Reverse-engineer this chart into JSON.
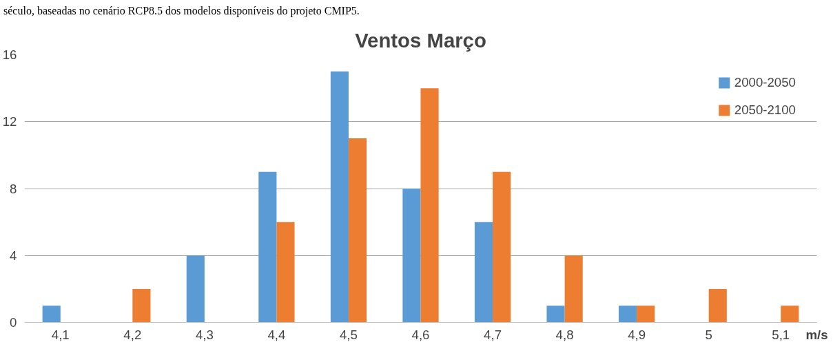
{
  "chart_data": {
    "type": "bar",
    "title": "Ventos Março",
    "xlabel": "m/s",
    "annotations": [
      "século, baseadas no cenário RCP8.5 dos modelos disponíveis do projeto CMIP5."
    ],
    "categories": [
      "4,1",
      "4,2",
      "4,3",
      "4,4",
      "4,5",
      "4,6",
      "4,7",
      "4,8",
      "4,9",
      "5",
      "5,1"
    ],
    "series": [
      {
        "name": "2000-2050",
        "color": "#5b9bd5",
        "values": [
          1,
          0,
          4,
          9,
          15,
          8,
          6,
          1,
          1,
          0,
          0
        ]
      },
      {
        "name": "2050-2100",
        "color": "#ed7d31",
        "values": [
          0,
          2,
          0,
          6,
          11,
          14,
          9,
          4,
          1,
          2,
          1
        ]
      }
    ],
    "ylim": [
      0,
      16
    ],
    "yticks": [
      0,
      4,
      8,
      12,
      16
    ],
    "grid": "y",
    "legend": "top right"
  }
}
